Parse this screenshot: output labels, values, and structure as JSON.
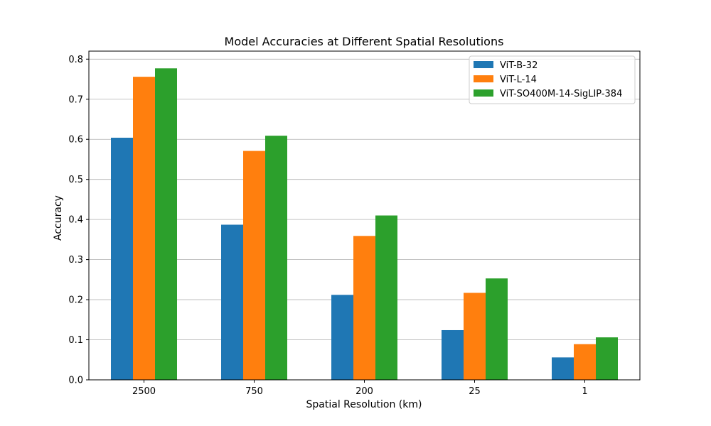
{
  "chart_data": {
    "type": "bar",
    "title": "Model Accuracies at Different Spatial Resolutions",
    "xlabel": "Spatial Resolution (km)",
    "ylabel": "Accuracy",
    "categories": [
      "2500",
      "750",
      "200",
      "25",
      "1"
    ],
    "ylim": [
      0,
      0.82
    ],
    "yticks": [
      "0.0",
      "0.1",
      "0.2",
      "0.3",
      "0.4",
      "0.5",
      "0.6",
      "0.7",
      "0.8"
    ],
    "grid": "y-major",
    "legend_position": "top-right",
    "series": [
      {
        "name": "ViT-B-32",
        "color": "#1f77b4",
        "values": [
          0.604,
          0.387,
          0.212,
          0.124,
          0.056
        ]
      },
      {
        "name": "ViT-L-14",
        "color": "#ff7f0e",
        "values": [
          0.756,
          0.571,
          0.359,
          0.217,
          0.089
        ]
      },
      {
        "name": "ViT-SO400M-14-SigLIP-384",
        "color": "#2ca02c",
        "values": [
          0.777,
          0.609,
          0.41,
          0.253,
          0.106
        ]
      }
    ]
  }
}
